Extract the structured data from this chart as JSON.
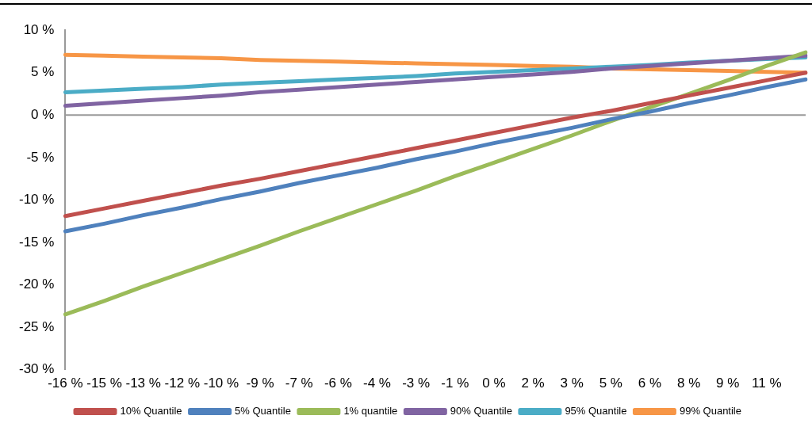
{
  "chart_data": {
    "type": "line",
    "categories": [
      "-16 %",
      "-15 %",
      "-13 %",
      "-12 %",
      "-10 %",
      "-9 %",
      "-7 %",
      "-6 %",
      "-4 %",
      "-3 %",
      "-1 %",
      "0 %",
      "2 %",
      "3 %",
      "5 %",
      "6 %",
      "8 %",
      "9 %",
      "11 %",
      null
    ],
    "series": [
      {
        "name": "10% Quantile",
        "color": "#c0504d",
        "values": [
          -11.9,
          -11.0,
          -10.1,
          -9.2,
          -8.3,
          -7.5,
          -6.6,
          -5.7,
          -4.8,
          -3.9,
          -3.0,
          -2.1,
          -1.2,
          -0.3,
          0.5,
          1.4,
          2.3,
          3.2,
          4.1,
          5.0
        ]
      },
      {
        "name": "5% Quantile",
        "color": "#4f81bd",
        "values": [
          -13.7,
          -12.8,
          -11.8,
          -10.9,
          -9.9,
          -9.0,
          -8.0,
          -7.1,
          -6.2,
          -5.2,
          -4.3,
          -3.3,
          -2.4,
          -1.5,
          -0.5,
          0.4,
          1.4,
          2.3,
          3.3,
          4.2
        ]
      },
      {
        "name": "1% quantile",
        "color": "#9bbb59",
        "values": [
          -23.5,
          -21.9,
          -20.2,
          -18.6,
          -17.0,
          -15.4,
          -13.7,
          -12.1,
          -10.5,
          -8.9,
          -7.2,
          -5.6,
          -4.0,
          -2.4,
          -0.7,
          0.9,
          2.5,
          4.1,
          5.8,
          7.4
        ]
      },
      {
        "name": "90% Quantile",
        "color": "#8064a2",
        "values": [
          1.1,
          1.4,
          1.7,
          2.0,
          2.3,
          2.7,
          3.0,
          3.3,
          3.6,
          3.9,
          4.2,
          4.5,
          4.8,
          5.1,
          5.5,
          5.8,
          6.1,
          6.4,
          6.7,
          7.0
        ]
      },
      {
        "name": "95% Quantile",
        "color": "#4bacc6",
        "values": [
          2.7,
          2.9,
          3.1,
          3.3,
          3.6,
          3.8,
          4.0,
          4.2,
          4.4,
          4.6,
          4.9,
          5.1,
          5.3,
          5.5,
          5.7,
          5.9,
          6.2,
          6.4,
          6.6,
          6.8
        ]
      },
      {
        "name": "99% Quantile",
        "color": "#f79646",
        "values": [
          7.1,
          7.0,
          6.9,
          6.8,
          6.7,
          6.5,
          6.4,
          6.3,
          6.2,
          6.1,
          6.0,
          5.9,
          5.8,
          5.7,
          5.5,
          5.4,
          5.3,
          5.2,
          5.1,
          5.0
        ]
      }
    ],
    "ylim": [
      -30,
      10
    ],
    "yticks": [
      {
        "value": -30,
        "label": "-30 %"
      },
      {
        "value": -25,
        "label": "-25 %"
      },
      {
        "value": -20,
        "label": "-20 %"
      },
      {
        "value": -15,
        "label": "-15 %"
      },
      {
        "value": -10,
        "label": "-10 %"
      },
      {
        "value": -5,
        "label": "-5 %"
      },
      {
        "value": 0,
        "label": "0 %"
      },
      {
        "value": 5,
        "label": "5 %"
      },
      {
        "value": 10,
        "label": "10 %"
      }
    ],
    "ref_lines": [
      {
        "axis": "y",
        "value": 0,
        "color": "#999999",
        "line_style": "solid"
      }
    ],
    "grid": false,
    "legend": "bottom",
    "marker": "none",
    "line_style": "solid"
  }
}
